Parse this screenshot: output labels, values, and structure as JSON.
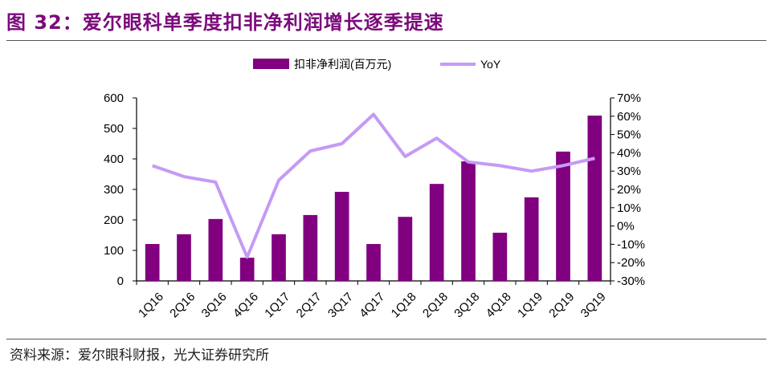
{
  "title": "图 32：爱尔眼科单季度扣非净利润增长逐季提速",
  "source": "资料来源：爱尔眼科财报，光大证券研究所",
  "chart_data": {
    "type": "bar+line",
    "categories": [
      "1Q16",
      "2Q16",
      "3Q16",
      "4Q16",
      "1Q17",
      "2Q17",
      "3Q17",
      "4Q17",
      "1Q18",
      "2Q18",
      "3Q18",
      "4Q18",
      "1Q19",
      "2Q19",
      "3Q19"
    ],
    "series": [
      {
        "name": "扣非净利润(百万元)",
        "type": "bar",
        "axis": "left",
        "color": "#800080",
        "values": [
          121,
          153,
          203,
          76,
          153,
          216,
          292,
          121,
          210,
          318,
          392,
          158,
          274,
          424,
          542
        ]
      },
      {
        "name": "YoY",
        "type": "line",
        "axis": "right",
        "color": "#c59af5",
        "values": [
          33,
          27,
          24,
          -17,
          25,
          41,
          45,
          61,
          38,
          48,
          35,
          33,
          30,
          33,
          37
        ]
      }
    ],
    "left_axis": {
      "ylim": [
        0,
        600
      ],
      "ticks": [
        "0",
        "100",
        "200",
        "300",
        "400",
        "500",
        "600"
      ]
    },
    "right_axis": {
      "ylim": [
        -30,
        70
      ],
      "ticks": [
        "-30%",
        "-20%",
        "-10%",
        "0%",
        "10%",
        "20%",
        "30%",
        "40%",
        "50%",
        "60%",
        "70%"
      ]
    },
    "legend_position": "top",
    "grid": false
  }
}
